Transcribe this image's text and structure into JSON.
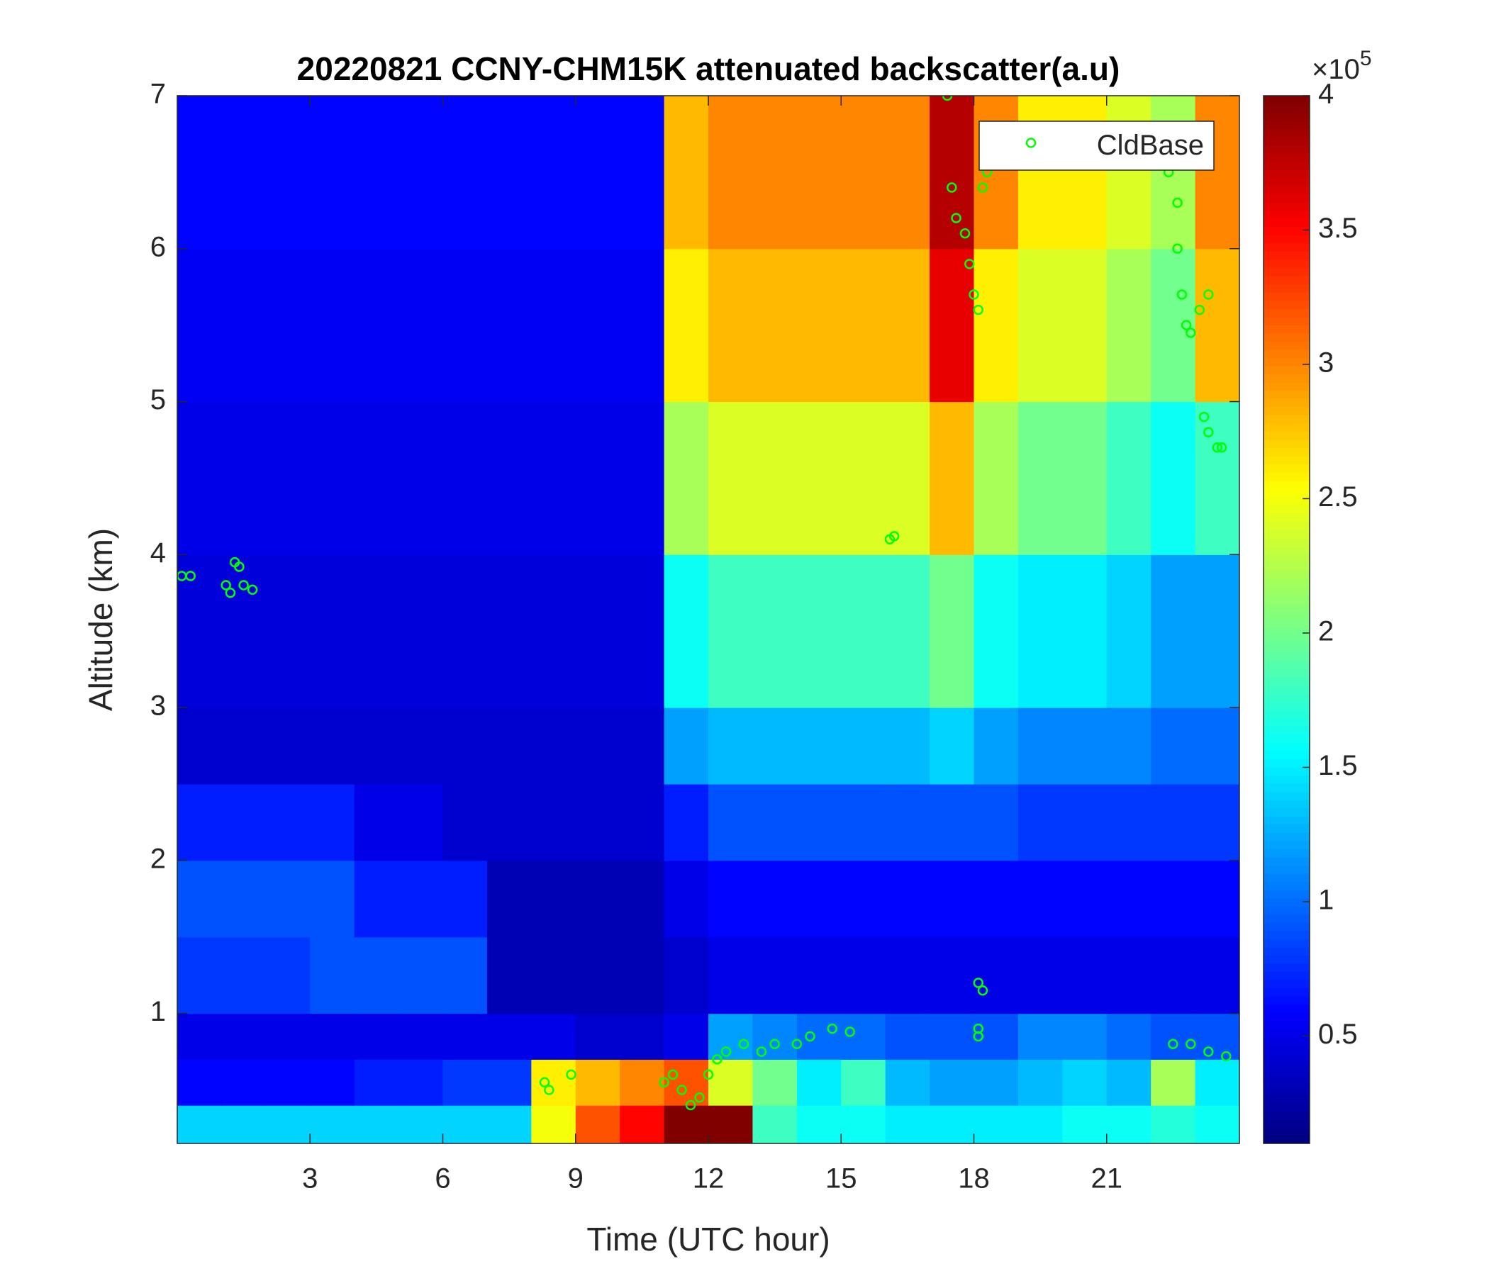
{
  "chart_data": {
    "type": "heatmap",
    "title": "20220821 CCNY-CHM15K attenuated backscatter(a.u)",
    "xlabel": "Time (UTC hour)",
    "ylabel": "Altitude (km)",
    "xlim": [
      0,
      24
    ],
    "ylim": [
      0.15,
      7
    ],
    "xticks": [
      3,
      6,
      9,
      12,
      15,
      18,
      21
    ],
    "yticks": [
      1,
      2,
      3,
      4,
      5,
      6,
      7
    ],
    "xbins": [
      0,
      1,
      2,
      3,
      4,
      5,
      6,
      7,
      8,
      9,
      10,
      11,
      12,
      13,
      14,
      15,
      16,
      17,
      18,
      19,
      20,
      21,
      22,
      23,
      24
    ],
    "ybins": [
      0.15,
      0.4,
      0.7,
      1,
      1.5,
      2,
      2.5,
      3,
      4,
      5,
      6,
      7
    ],
    "values": [
      [
        1.4,
        1.4,
        1.4,
        1.4,
        1.4,
        1.4,
        1.4,
        1.4,
        2.5,
        3.2,
        3.5,
        4,
        4,
        1.8,
        1.6,
        1.6,
        1.5,
        1.5,
        1.5,
        1.5,
        1.6,
        1.6,
        1.7,
        1.6
      ],
      [
        0.6,
        0.6,
        0.6,
        0.6,
        0.7,
        0.7,
        0.8,
        0.8,
        2.6,
        2.8,
        3,
        3.2,
        2.4,
        2,
        1.5,
        1.8,
        1.3,
        1.2,
        1.2,
        1.3,
        1.4,
        1.3,
        2.2,
        1.5
      ],
      [
        0.5,
        0.5,
        0.5,
        0.5,
        0.5,
        0.5,
        0.5,
        0.5,
        0.5,
        0.4,
        0.4,
        0.5,
        1.2,
        1.1,
        1,
        1,
        0.9,
        0.9,
        0.9,
        1.1,
        1.1,
        1,
        0.9,
        0.9
      ],
      [
        0.8,
        0.8,
        0.8,
        0.9,
        0.9,
        0.9,
        0.9,
        0.3,
        0.3,
        0.3,
        0.3,
        0.4,
        0.5,
        0.5,
        0.5,
        0.5,
        0.5,
        0.5,
        0.5,
        0.5,
        0.5,
        0.5,
        0.5,
        0.5
      ],
      [
        0.9,
        0.9,
        0.9,
        0.9,
        0.7,
        0.7,
        0.7,
        0.3,
        0.3,
        0.3,
        0.3,
        0.5,
        0.6,
        0.6,
        0.6,
        0.6,
        0.6,
        0.6,
        0.6,
        0.6,
        0.6,
        0.6,
        0.6,
        0.6
      ],
      [
        0.7,
        0.7,
        0.7,
        0.7,
        0.5,
        0.5,
        0.4,
        0.4,
        0.4,
        0.4,
        0.4,
        0.7,
        0.9,
        0.9,
        0.9,
        0.9,
        0.9,
        0.9,
        0.9,
        0.8,
        0.8,
        0.8,
        0.8,
        0.8
      ],
      [
        0.4,
        0.4,
        0.4,
        0.4,
        0.4,
        0.4,
        0.4,
        0.4,
        0.4,
        0.4,
        0.4,
        1.2,
        1.3,
        1.3,
        1.3,
        1.3,
        1.3,
        1.4,
        1.2,
        1.1,
        1.1,
        1.1,
        1.0,
        1.0
      ],
      [
        0.45,
        0.45,
        0.45,
        0.45,
        0.45,
        0.45,
        0.45,
        0.45,
        0.45,
        0.45,
        0.45,
        1.6,
        1.8,
        1.8,
        1.8,
        1.8,
        1.8,
        2,
        1.6,
        1.5,
        1.5,
        1.4,
        1.2,
        1.2
      ],
      [
        0.5,
        0.5,
        0.5,
        0.5,
        0.5,
        0.5,
        0.5,
        0.5,
        0.5,
        0.5,
        0.5,
        2.2,
        2.4,
        2.4,
        2.4,
        2.4,
        2.4,
        2.8,
        2.2,
        2,
        2,
        1.8,
        1.6,
        1.8
      ],
      [
        0.55,
        0.55,
        0.55,
        0.55,
        0.55,
        0.55,
        0.55,
        0.55,
        0.55,
        0.55,
        0.55,
        2.6,
        2.8,
        2.8,
        2.8,
        2.8,
        2.8,
        3.6,
        2.6,
        2.4,
        2.4,
        2.2,
        2,
        2.8
      ],
      [
        0.6,
        0.6,
        0.6,
        0.6,
        0.6,
        0.6,
        0.6,
        0.6,
        0.6,
        0.6,
        0.6,
        2.8,
        3,
        3,
        3,
        3,
        3,
        3.8,
        3,
        2.6,
        2.6,
        2.4,
        2.2,
        3
      ]
    ],
    "clim": [
      0.1,
      4
    ],
    "cticks": [
      0.5,
      1,
      1.5,
      2,
      2.5,
      3,
      3.5,
      4
    ],
    "colorbar_exponent": {
      "base": "×10",
      "power": "5"
    },
    "colormap": "jet",
    "legend": "upper right",
    "series": [
      {
        "name": "CldBase",
        "color": "#00ff00",
        "x": [
          0.1,
          0.3,
          1.1,
          1.2,
          1.3,
          1.4,
          1.5,
          1.7,
          8.3,
          8.4,
          8.9,
          11,
          11.2,
          11.4,
          11.6,
          11.8,
          12,
          12.2,
          12.4,
          12.8,
          13.2,
          13.5,
          14,
          14.3,
          14.8,
          15.2,
          16.1,
          16.2,
          17.4,
          17.5,
          17.6,
          17.8,
          17.9,
          18,
          18.1,
          18.2,
          18.3,
          18.1,
          18.2,
          18.1,
          18.1,
          22.4,
          22.6,
          22.6,
          22.7,
          22.8,
          22.9,
          23.1,
          23.3,
          23.2,
          23.3,
          23.5,
          23.6,
          22.5,
          22.9,
          23.3,
          23.7
        ],
        "values": [
          3.86,
          3.86,
          3.8,
          3.75,
          3.95,
          3.92,
          3.8,
          3.77,
          0.55,
          0.5,
          0.6,
          0.55,
          0.6,
          0.5,
          0.4,
          0.45,
          0.6,
          0.7,
          0.75,
          0.8,
          0.75,
          0.8,
          0.8,
          0.85,
          0.9,
          0.88,
          4.1,
          4.12,
          7,
          6.4,
          6.2,
          6.1,
          5.9,
          5.7,
          5.6,
          6.4,
          6.5,
          1.2,
          1.15,
          0.9,
          0.85,
          6.5,
          6.3,
          6.0,
          5.7,
          5.5,
          5.45,
          5.6,
          5.7,
          4.9,
          4.8,
          4.7,
          4.7,
          0.8,
          0.8,
          0.75,
          0.72
        ]
      }
    ]
  }
}
